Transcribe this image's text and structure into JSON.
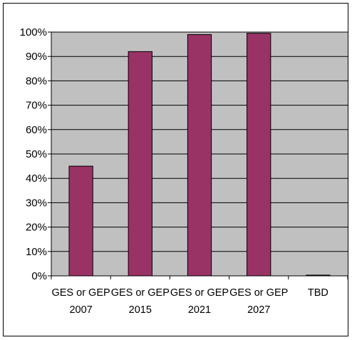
{
  "chart_data": {
    "type": "bar",
    "title": "",
    "xlabel": "",
    "ylabel": "",
    "categories": [
      [
        "GES or GEP",
        "2007"
      ],
      [
        "GES or GEP",
        "2015"
      ],
      [
        "GES or GEP",
        "2021"
      ],
      [
        "GES or GEP",
        "2027"
      ],
      [
        "TBD"
      ]
    ],
    "values": [
      45,
      92,
      99,
      99.5,
      0.3
    ],
    "ylim": [
      0,
      100
    ],
    "yticks": [
      "0%",
      "10%",
      "20%",
      "30%",
      "40%",
      "50%",
      "60%",
      "70%",
      "80%",
      "90%",
      "100%"
    ],
    "grid": true,
    "legend": "none",
    "colors": {
      "bar": "#993366",
      "plot_background": "#c0c0c0",
      "gridline": "#000000"
    }
  }
}
